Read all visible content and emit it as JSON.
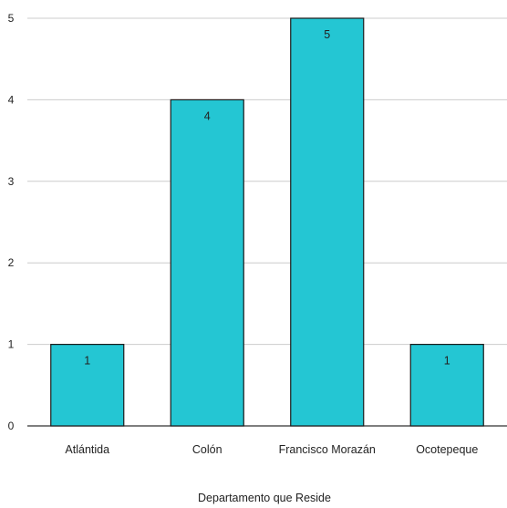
{
  "chart_data": {
    "type": "bar",
    "categories": [
      "Atlántida",
      "Colón",
      "Francisco Morazán",
      "Ocotepeque"
    ],
    "values": [
      1,
      4,
      5,
      1
    ],
    "data_labels": [
      "1",
      "4",
      "5",
      "1"
    ],
    "xlabel": "Departamento que Reside",
    "ylabel": "",
    "ylim": [
      0,
      5
    ],
    "yticks": [
      "0",
      "1",
      "2",
      "3",
      "4",
      "5"
    ],
    "grid": true,
    "legend": "none",
    "bar_color": "#24c6d3",
    "bar_border_color": "#1a1a1a",
    "grid_color": "#cccccc"
  }
}
